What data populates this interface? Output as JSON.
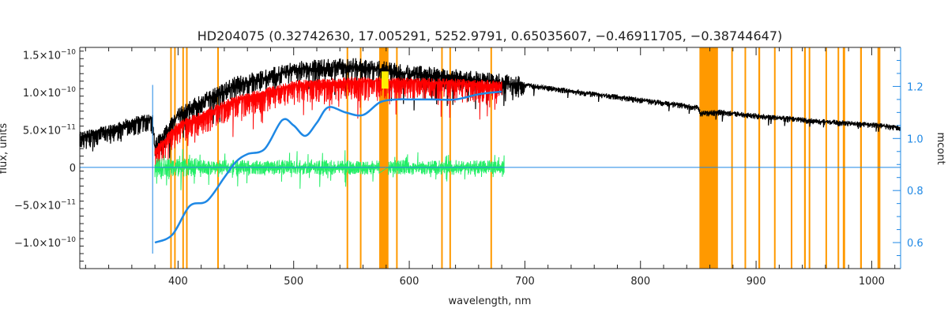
{
  "chart_data": {
    "type": "line",
    "title": "HD204075    (0.32742630, 17.005291, 5252.9791, 0.65035607, −0.46911705, −0.38744647)",
    "xlabel": "wavelength, nm",
    "ylabel_left": "flux, units",
    "ylabel_right": "mcont",
    "xlim": [
      315,
      1025
    ],
    "ylim_left": [
      -1.35e-10,
      1.6e-10
    ],
    "ylim_right": [
      0.5,
      1.35
    ],
    "x_ticks": [
      400,
      500,
      600,
      700,
      800,
      900,
      1000
    ],
    "x_tick_labels": [
      "400",
      "500",
      "600",
      "700",
      "800",
      "900",
      "1000"
    ],
    "y_left_ticks": [
      -1e-10,
      -5e-11,
      0,
      5e-11,
      1e-10,
      1.5e-10
    ],
    "y_left_tick_labels": [
      {
        "mant": "−1.0×10",
        "exp": "−10"
      },
      {
        "mant": "−5.0×10",
        "exp": "−11"
      },
      {
        "mant": "0",
        "exp": ""
      },
      {
        "mant": "5.0×10",
        "exp": "−11"
      },
      {
        "mant": "1.0×10",
        "exp": "−10"
      },
      {
        "mant": "1.5×10",
        "exp": "−10"
      }
    ],
    "y_right_ticks": [
      0.6,
      0.8,
      1.0,
      1.2
    ],
    "y_right_tick_labels": [
      "0.6",
      "0.8",
      "1.0",
      "1.2"
    ],
    "colors": {
      "observed": "#000000",
      "model": "#ff0000",
      "residual": "#22ee66",
      "continuum": "#1e88e5",
      "zero_line": "#1e88e5",
      "mask": "#ff9900",
      "highlight": "#ffee00",
      "right_axis": "#1e88e5"
    },
    "mask_bands": [
      [
        393.2,
        393.8
      ],
      [
        396.6,
        397.2
      ],
      [
        403.7,
        404.3
      ],
      [
        406.9,
        407.5
      ],
      [
        433.9,
        434.5
      ],
      [
        545.8,
        546.4
      ],
      [
        557.3,
        557.9
      ],
      [
        574,
        582
      ],
      [
        588.6,
        589.3
      ],
      [
        627.6,
        628.2
      ],
      [
        634.7,
        635.3
      ],
      [
        670.2,
        670.8
      ],
      [
        851,
        867
      ],
      [
        878.5,
        879.5
      ],
      [
        890,
        891
      ],
      [
        902,
        903.5
      ],
      [
        915.5,
        916.5
      ],
      [
        930,
        931
      ],
      [
        941.5,
        943
      ],
      [
        945.5,
        946.5
      ],
      [
        960,
        961
      ],
      [
        970.5,
        971.5
      ],
      [
        975,
        977
      ],
      [
        990,
        991.5
      ],
      [
        1005,
        1007.5
      ]
    ],
    "highlight_band": [
      576,
      582
    ],
    "series": [
      {
        "name": "observed",
        "axis": "left",
        "x": [
          315,
          340,
          360,
          378,
          380,
          400,
          450,
          500,
          550,
          580,
          600,
          650,
          700,
          750,
          800,
          850,
          852,
          870,
          900,
          950,
          1000,
          1025
        ],
        "y": [
          4e-11,
          5e-11,
          6e-11,
          6.6e-11,
          2.5e-11,
          7e-11,
          1.1e-10,
          1.3e-10,
          1.35e-10,
          1.3e-10,
          1.25e-10,
          1.18e-10,
          1.1e-10,
          1e-10,
          9e-11,
          8e-11,
          7.2e-11,
          7.4e-11,
          6.9e-11,
          6.2e-11,
          5.7e-11,
          5.3e-11
        ]
      },
      {
        "name": "model",
        "axis": "left",
        "x": [
          380,
          400,
          450,
          500,
          550,
          600,
          650,
          680
        ],
        "y": [
          2.2e-11,
          5.5e-11,
          9e-11,
          1.1e-10,
          1.15e-10,
          1.14e-10,
          1.12e-10,
          1.1e-10
        ]
      },
      {
        "name": "residual",
        "axis": "left",
        "x": [
          380,
          682
        ],
        "y": [
          0,
          0
        ]
      },
      {
        "name": "continuum",
        "axis": "right",
        "x": [
          380,
          395,
          410,
          425,
          440,
          450,
          460,
          475,
          490,
          500,
          510,
          520,
          530,
          545,
          560,
          575,
          590,
          600,
          620,
          640,
          660,
          680
        ],
        "y": [
          0.6,
          0.63,
          0.74,
          0.76,
          0.85,
          0.91,
          0.94,
          0.96,
          1.07,
          1.05,
          1.01,
          1.06,
          1.12,
          1.1,
          1.09,
          1.14,
          1.15,
          1.15,
          1.15,
          1.15,
          1.17,
          1.18
        ]
      }
    ]
  }
}
